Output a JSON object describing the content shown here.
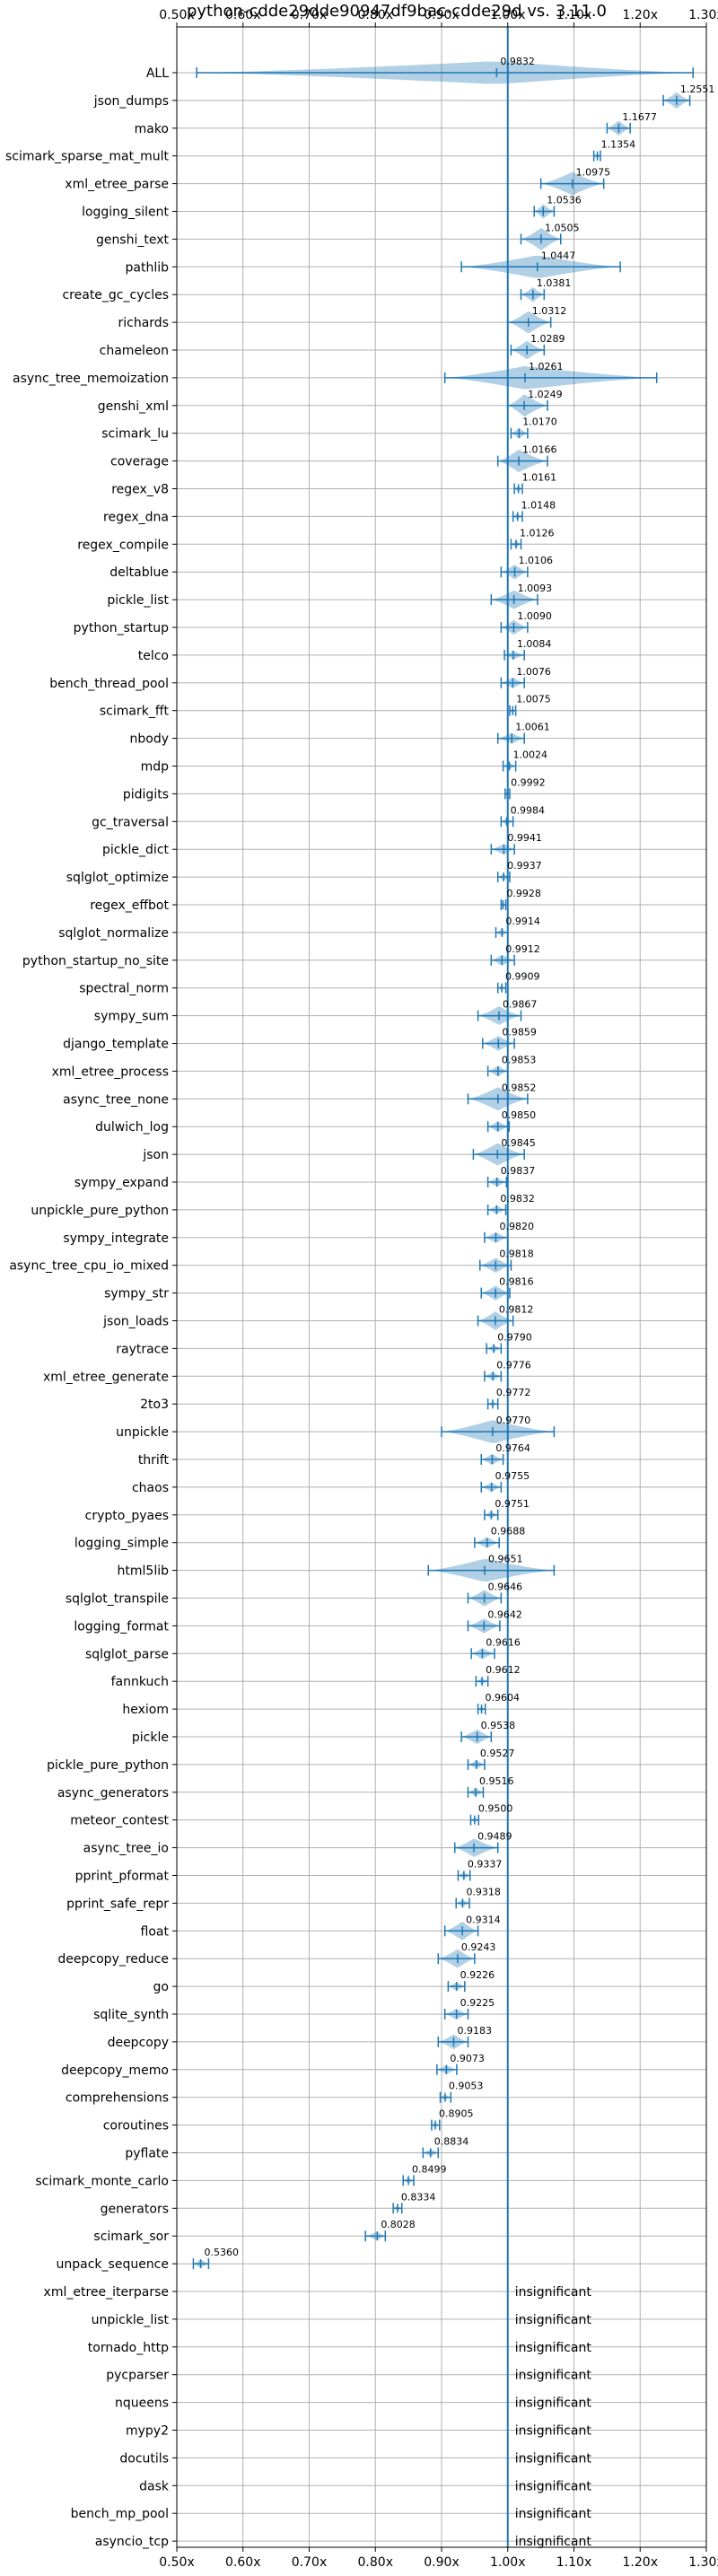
{
  "chart_data": {
    "type": "violin",
    "title": "python-cdde29dde90947df9bac-cdde29d vs. 3.11.0",
    "xlim": [
      0.5,
      1.3
    ],
    "xticks": [
      0.5,
      0.6,
      0.7,
      0.8,
      0.9,
      1.0,
      1.1,
      1.2,
      1.3
    ],
    "xtick_labels": [
      "0.50x",
      "0.60x",
      "0.70x",
      "0.80x",
      "0.90x",
      "1.00x",
      "1.10x",
      "1.20x",
      "1.30x"
    ],
    "reference_line": 1.0,
    "grid": true,
    "colors": {
      "violin": "#1f77b4",
      "reference": "#1f77b4",
      "grid": "#b0b0b0"
    },
    "insignificant_text": "insignificant",
    "benchmarks": [
      {
        "name": "ALL",
        "value": 0.9832,
        "label": "0.9832",
        "min": 0.53,
        "max": 1.28,
        "width": 0.08
      },
      {
        "name": "json_dumps",
        "value": 1.2551,
        "label": "1.2551",
        "min": 1.235,
        "max": 1.275,
        "width": 0.022
      },
      {
        "name": "mako",
        "value": 1.1677,
        "label": "1.1677",
        "min": 1.15,
        "max": 1.185,
        "width": 0.02
      },
      {
        "name": "scimark_sparse_mat_mult",
        "value": 1.1354,
        "label": "1.1354",
        "min": 1.13,
        "max": 1.14,
        "width": 0.008
      },
      {
        "name": "xml_etree_parse",
        "value": 1.0975,
        "label": "1.0975",
        "min": 1.05,
        "max": 1.145,
        "width": 0.06
      },
      {
        "name": "logging_silent",
        "value": 1.0536,
        "label": "1.0536",
        "min": 1.04,
        "max": 1.07,
        "width": 0.02
      },
      {
        "name": "genshi_text",
        "value": 1.0505,
        "label": "1.0505",
        "min": 1.02,
        "max": 1.08,
        "width": 0.03
      },
      {
        "name": "pathlib",
        "value": 1.0447,
        "label": "1.0447",
        "min": 0.93,
        "max": 1.17,
        "width": 0.08
      },
      {
        "name": "create_gc_cycles",
        "value": 1.0381,
        "label": "1.0381",
        "min": 1.02,
        "max": 1.055,
        "width": 0.02
      },
      {
        "name": "richards",
        "value": 1.0312,
        "label": "1.0312",
        "min": 1.0,
        "max": 1.065,
        "width": 0.03
      },
      {
        "name": "chameleon",
        "value": 1.0289,
        "label": "1.0289",
        "min": 1.005,
        "max": 1.055,
        "width": 0.025
      },
      {
        "name": "async_tree_memoization",
        "value": 1.0261,
        "label": "1.0261",
        "min": 0.905,
        "max": 1.225,
        "width": 0.08
      },
      {
        "name": "genshi_xml",
        "value": 1.0249,
        "label": "1.0249",
        "min": 1.0,
        "max": 1.06,
        "width": 0.03
      },
      {
        "name": "scimark_lu",
        "value": 1.017,
        "label": "1.0170",
        "min": 1.005,
        "max": 1.03,
        "width": 0.015
      },
      {
        "name": "coverage",
        "value": 1.0166,
        "label": "1.0166",
        "min": 0.985,
        "max": 1.06,
        "width": 0.03
      },
      {
        "name": "regex_v8",
        "value": 1.0161,
        "label": "1.0161",
        "min": 1.01,
        "max": 1.022,
        "width": 0.008
      },
      {
        "name": "regex_dna",
        "value": 1.0148,
        "label": "1.0148",
        "min": 1.008,
        "max": 1.022,
        "width": 0.008
      },
      {
        "name": "regex_compile",
        "value": 1.0126,
        "label": "1.0126",
        "min": 1.005,
        "max": 1.02,
        "width": 0.01
      },
      {
        "name": "deltablue",
        "value": 1.0106,
        "label": "1.0106",
        "min": 0.99,
        "max": 1.03,
        "width": 0.02
      },
      {
        "name": "pickle_list",
        "value": 1.0093,
        "label": "1.0093",
        "min": 0.975,
        "max": 1.045,
        "width": 0.025
      },
      {
        "name": "python_startup",
        "value": 1.009,
        "label": "1.0090",
        "min": 0.99,
        "max": 1.03,
        "width": 0.02
      },
      {
        "name": "telco",
        "value": 1.0084,
        "label": "1.0084",
        "min": 0.995,
        "max": 1.025,
        "width": 0.012
      },
      {
        "name": "bench_thread_pool",
        "value": 1.0076,
        "label": "1.0076",
        "min": 0.99,
        "max": 1.025,
        "width": 0.015
      },
      {
        "name": "scimark_fft",
        "value": 1.0075,
        "label": "1.0075",
        "min": 1.003,
        "max": 1.012,
        "width": 0.006
      },
      {
        "name": "nbody",
        "value": 1.0061,
        "label": "1.0061",
        "min": 0.985,
        "max": 1.025,
        "width": 0.015
      },
      {
        "name": "mdp",
        "value": 1.0024,
        "label": "1.0024",
        "min": 0.993,
        "max": 1.012,
        "width": 0.01
      },
      {
        "name": "pidigits",
        "value": 0.9992,
        "label": "0.9992",
        "min": 0.996,
        "max": 1.003,
        "width": 0.005
      },
      {
        "name": "gc_traversal",
        "value": 0.9984,
        "label": "0.9984",
        "min": 0.99,
        "max": 1.008,
        "width": 0.01
      },
      {
        "name": "pickle_dict",
        "value": 0.9941,
        "label": "0.9941",
        "min": 0.975,
        "max": 1.01,
        "width": 0.015
      },
      {
        "name": "sqlglot_optimize",
        "value": 0.9937,
        "label": "0.9937",
        "min": 0.985,
        "max": 1.003,
        "width": 0.01
      },
      {
        "name": "regex_effbot",
        "value": 0.9928,
        "label": "0.9928",
        "min": 0.99,
        "max": 0.997,
        "width": 0.006
      },
      {
        "name": "sqlglot_normalize",
        "value": 0.9914,
        "label": "0.9914",
        "min": 0.982,
        "max": 1.0,
        "width": 0.01
      },
      {
        "name": "python_startup_no_site",
        "value": 0.9912,
        "label": "0.9912",
        "min": 0.975,
        "max": 1.01,
        "width": 0.015
      },
      {
        "name": "spectral_norm",
        "value": 0.9909,
        "label": "0.9909",
        "min": 0.985,
        "max": 0.997,
        "width": 0.007
      },
      {
        "name": "sympy_sum",
        "value": 0.9867,
        "label": "0.9867",
        "min": 0.955,
        "max": 1.02,
        "width": 0.025
      },
      {
        "name": "django_template",
        "value": 0.9859,
        "label": "0.9859",
        "min": 0.962,
        "max": 1.01,
        "width": 0.02
      },
      {
        "name": "xml_etree_process",
        "value": 0.9853,
        "label": "0.9853",
        "min": 0.97,
        "max": 1.0,
        "width": 0.015
      },
      {
        "name": "async_tree_none",
        "value": 0.9852,
        "label": "0.9852",
        "min": 0.94,
        "max": 1.03,
        "width": 0.045
      },
      {
        "name": "dulwich_log",
        "value": 0.985,
        "label": "0.9850",
        "min": 0.97,
        "max": 1.002,
        "width": 0.015
      },
      {
        "name": "json",
        "value": 0.9845,
        "label": "0.9845",
        "min": 0.948,
        "max": 1.025,
        "width": 0.03
      },
      {
        "name": "sympy_expand",
        "value": 0.9837,
        "label": "0.9837",
        "min": 0.97,
        "max": 0.998,
        "width": 0.013
      },
      {
        "name": "unpickle_pure_python",
        "value": 0.9832,
        "label": "0.9832",
        "min": 0.97,
        "max": 0.997,
        "width": 0.012
      },
      {
        "name": "sympy_integrate",
        "value": 0.982,
        "label": "0.9820",
        "min": 0.965,
        "max": 1.0,
        "width": 0.015
      },
      {
        "name": "async_tree_cpu_io_mixed",
        "value": 0.9818,
        "label": "0.9818",
        "min": 0.958,
        "max": 1.005,
        "width": 0.02
      },
      {
        "name": "sympy_str",
        "value": 0.9816,
        "label": "0.9816",
        "min": 0.96,
        "max": 1.003,
        "width": 0.02
      },
      {
        "name": "json_loads",
        "value": 0.9812,
        "label": "0.9812",
        "min": 0.955,
        "max": 1.008,
        "width": 0.025
      },
      {
        "name": "raytrace",
        "value": 0.979,
        "label": "0.9790",
        "min": 0.968,
        "max": 0.99,
        "width": 0.01
      },
      {
        "name": "xml_etree_generate",
        "value": 0.9776,
        "label": "0.9776",
        "min": 0.965,
        "max": 0.99,
        "width": 0.012
      },
      {
        "name": "2to3",
        "value": 0.9772,
        "label": "0.9772",
        "min": 0.97,
        "max": 0.985,
        "width": 0.007
      },
      {
        "name": "unpickle",
        "value": 0.977,
        "label": "0.9770",
        "min": 0.9,
        "max": 1.07,
        "width": 0.06
      },
      {
        "name": "thrift",
        "value": 0.9764,
        "label": "0.9764",
        "min": 0.96,
        "max": 0.993,
        "width": 0.015
      },
      {
        "name": "chaos",
        "value": 0.9755,
        "label": "0.9755",
        "min": 0.96,
        "max": 0.99,
        "width": 0.013
      },
      {
        "name": "crypto_pyaes",
        "value": 0.9751,
        "label": "0.9751",
        "min": 0.965,
        "max": 0.985,
        "width": 0.01
      },
      {
        "name": "logging_simple",
        "value": 0.9688,
        "label": "0.9688",
        "min": 0.95,
        "max": 0.987,
        "width": 0.015
      },
      {
        "name": "html5lib",
        "value": 0.9651,
        "label": "0.9651",
        "min": 0.88,
        "max": 1.07,
        "width": 0.06
      },
      {
        "name": "sqlglot_transpile",
        "value": 0.9646,
        "label": "0.9646",
        "min": 0.94,
        "max": 0.99,
        "width": 0.022
      },
      {
        "name": "logging_format",
        "value": 0.9642,
        "label": "0.9642",
        "min": 0.94,
        "max": 0.988,
        "width": 0.02
      },
      {
        "name": "sqlglot_parse",
        "value": 0.9616,
        "label": "0.9616",
        "min": 0.945,
        "max": 0.98,
        "width": 0.015
      },
      {
        "name": "fannkuch",
        "value": 0.9612,
        "label": "0.9612",
        "min": 0.952,
        "max": 0.97,
        "width": 0.009
      },
      {
        "name": "hexiom",
        "value": 0.9604,
        "label": "0.9604",
        "min": 0.955,
        "max": 0.966,
        "width": 0.006
      },
      {
        "name": "pickle",
        "value": 0.9538,
        "label": "0.9538",
        "min": 0.93,
        "max": 0.975,
        "width": 0.02
      },
      {
        "name": "pickle_pure_python",
        "value": 0.9527,
        "label": "0.9527",
        "min": 0.94,
        "max": 0.965,
        "width": 0.012
      },
      {
        "name": "async_generators",
        "value": 0.9516,
        "label": "0.9516",
        "min": 0.94,
        "max": 0.963,
        "width": 0.012
      },
      {
        "name": "meteor_contest",
        "value": 0.95,
        "label": "0.9500",
        "min": 0.944,
        "max": 0.956,
        "width": 0.006
      },
      {
        "name": "async_tree_io",
        "value": 0.9489,
        "label": "0.9489",
        "min": 0.92,
        "max": 0.985,
        "width": 0.025
      },
      {
        "name": "pprint_pformat",
        "value": 0.9337,
        "label": "0.9337",
        "min": 0.925,
        "max": 0.943,
        "width": 0.009
      },
      {
        "name": "pprint_safe_repr",
        "value": 0.9318,
        "label": "0.9318",
        "min": 0.922,
        "max": 0.942,
        "width": 0.01
      },
      {
        "name": "float",
        "value": 0.9314,
        "label": "0.9314",
        "min": 0.905,
        "max": 0.955,
        "width": 0.025
      },
      {
        "name": "deepcopy_reduce",
        "value": 0.9243,
        "label": "0.9243",
        "min": 0.895,
        "max": 0.95,
        "width": 0.025
      },
      {
        "name": "go",
        "value": 0.9226,
        "label": "0.9226",
        "min": 0.91,
        "max": 0.935,
        "width": 0.012
      },
      {
        "name": "sqlite_synth",
        "value": 0.9225,
        "label": "0.9225",
        "min": 0.905,
        "max": 0.94,
        "width": 0.015
      },
      {
        "name": "deepcopy",
        "value": 0.9183,
        "label": "0.9183",
        "min": 0.895,
        "max": 0.94,
        "width": 0.02
      },
      {
        "name": "deepcopy_memo",
        "value": 0.9073,
        "label": "0.9073",
        "min": 0.893,
        "max": 0.923,
        "width": 0.013
      },
      {
        "name": "comprehensions",
        "value": 0.9053,
        "label": "0.9053",
        "min": 0.898,
        "max": 0.914,
        "width": 0.008
      },
      {
        "name": "coroutines",
        "value": 0.8905,
        "label": "0.8905",
        "min": 0.885,
        "max": 0.897,
        "width": 0.006
      },
      {
        "name": "pyflate",
        "value": 0.8834,
        "label": "0.8834",
        "min": 0.872,
        "max": 0.895,
        "width": 0.01
      },
      {
        "name": "scimark_monte_carlo",
        "value": 0.8499,
        "label": "0.8499",
        "min": 0.842,
        "max": 0.858,
        "width": 0.008
      },
      {
        "name": "generators",
        "value": 0.8334,
        "label": "0.8334",
        "min": 0.827,
        "max": 0.84,
        "width": 0.007
      },
      {
        "name": "scimark_sor",
        "value": 0.8028,
        "label": "0.8028",
        "min": 0.785,
        "max": 0.815,
        "width": 0.012
      },
      {
        "name": "unpack_sequence",
        "value": 0.536,
        "label": "0.5360",
        "min": 0.525,
        "max": 0.548,
        "width": 0.012
      },
      {
        "name": "xml_etree_iterparse",
        "insignificant": true
      },
      {
        "name": "unpickle_list",
        "insignificant": true
      },
      {
        "name": "tornado_http",
        "insignificant": true
      },
      {
        "name": "pycparser",
        "insignificant": true
      },
      {
        "name": "nqueens",
        "insignificant": true
      },
      {
        "name": "mypy2",
        "insignificant": true
      },
      {
        "name": "docutils",
        "insignificant": true
      },
      {
        "name": "dask",
        "insignificant": true
      },
      {
        "name": "bench_mp_pool",
        "insignificant": true
      },
      {
        "name": "asyncio_tcp",
        "insignificant": true
      }
    ]
  }
}
